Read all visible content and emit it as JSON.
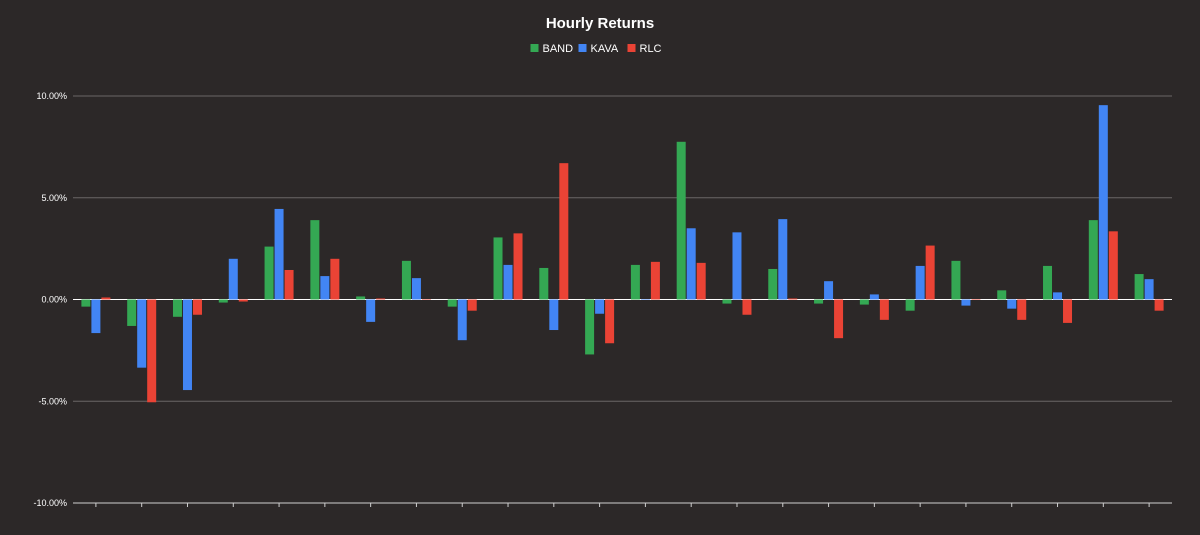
{
  "chart_data": {
    "type": "bar",
    "title": "Hourly Returns",
    "xlabel": "",
    "ylabel": "",
    "ylim": [
      -10,
      10
    ],
    "yticks": [
      "10.00%",
      "5.00%",
      "0.00%",
      "-5.00%",
      "-10.00%"
    ],
    "ytick_values": [
      10,
      5,
      0,
      -5,
      -10
    ],
    "grid": true,
    "legend_position": "top-center",
    "categories": 24,
    "series": [
      {
        "name": "BAND",
        "color": "#34a853",
        "values": [
          -0.35,
          -1.3,
          -0.85,
          -0.15,
          2.6,
          3.9,
          0.15,
          1.9,
          -0.35,
          3.05,
          1.55,
          -2.7,
          1.7,
          7.75,
          -0.2,
          1.5,
          -0.2,
          -0.25,
          -0.55,
          1.9,
          0.45,
          1.65,
          3.9,
          1.25
        ]
      },
      {
        "name": "KAVA",
        "color": "#4285f4",
        "values": [
          -1.65,
          -3.35,
          -4.45,
          2.0,
          4.45,
          1.15,
          -1.1,
          1.05,
          -2.0,
          1.7,
          -1.5,
          -0.7,
          0.0,
          3.5,
          3.3,
          3.95,
          0.9,
          0.25,
          1.65,
          -0.3,
          -0.45,
          0.35,
          9.55,
          1.0
        ]
      },
      {
        "name": "RLC",
        "color": "#ea4335",
        "values": [
          0.1,
          -5.05,
          -0.75,
          -0.1,
          1.45,
          2.0,
          0.05,
          0.0,
          -0.55,
          3.25,
          6.7,
          -2.15,
          1.85,
          1.8,
          -0.75,
          0.05,
          -1.9,
          -1.0,
          2.65,
          0.0,
          -1.0,
          -1.15,
          3.35,
          -0.55
        ]
      }
    ]
  }
}
